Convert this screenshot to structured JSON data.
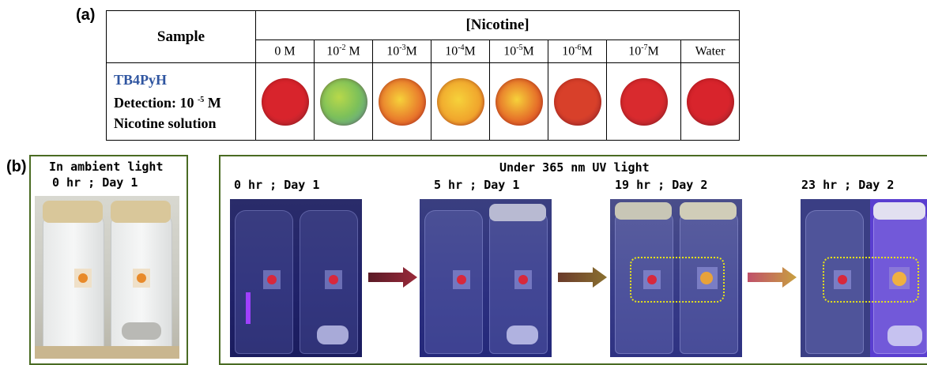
{
  "panel_a": {
    "label": "(a)",
    "sample_header": "Sample",
    "nicotine_header": "[Nicotine]",
    "concentrations": [
      {
        "base": "0 M",
        "sup": "",
        "unit": ""
      },
      {
        "base": "10",
        "sup": "-2",
        "unit": " M"
      },
      {
        "base": "10",
        "sup": "-3",
        "unit": "M"
      },
      {
        "base": "10",
        "sup": "-4",
        "unit": "M"
      },
      {
        "base": "10",
        "sup": "-5",
        "unit": "M"
      },
      {
        "base": "10",
        "sup": "-6",
        "unit": "M"
      },
      {
        "base": "10",
        "sup": "-7",
        "unit": "M"
      },
      {
        "base": "Water",
        "sup": "",
        "unit": ""
      }
    ],
    "probe_name": "TB4PyH",
    "detection_prefix": "Detection: 10 ",
    "detection_sup": "-5",
    "detection_unit": " M",
    "solution_label": "Nicotine solution",
    "spot_colors": [
      "#d8242c",
      "#8fc94a",
      "#e8752b",
      "#f0a32c",
      "#e56a28",
      "#d8402a",
      "#d92a2e",
      "#d8242c"
    ]
  },
  "panel_b": {
    "label": "(b)",
    "ambient_title": "In ambient light",
    "ambient_time": "0 hr ; Day 1",
    "uv_title": "Under 365 nm UV light",
    "uv_times": [
      "0 hr ; Day 1",
      "5 hr ; Day 1",
      "19 hr ; Day 2",
      "23 hr ; Day 2"
    ]
  }
}
